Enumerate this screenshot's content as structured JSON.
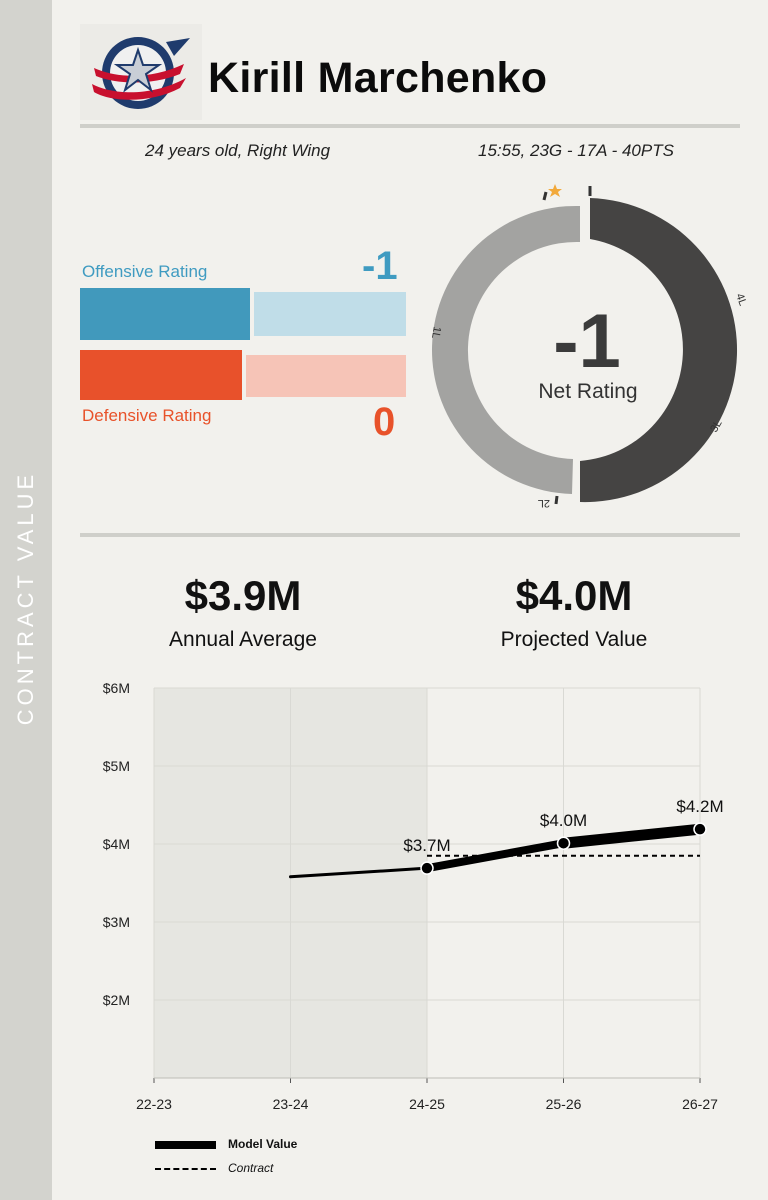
{
  "sidebar": {
    "label": "CONTRACT VALUE"
  },
  "header": {
    "player_name": "Kirill Marchenko",
    "logo_icon": "blue-jackets-logo-icon"
  },
  "info": {
    "age_position": "24 years old, Right Wing",
    "stats_line": "15:55, 23G - 17A - 40PTS"
  },
  "ratings": {
    "offensive": {
      "label": "Offensive Rating",
      "value": "-1",
      "color": "#4199bc",
      "fill": 0.53
    },
    "defensive": {
      "label": "Defensive Rating",
      "value": "0",
      "color": "#e8512b",
      "fill": 0.5
    },
    "net": {
      "label": "Net Rating",
      "value": "-1"
    },
    "donut_ticks": [
      "1L",
      "2L",
      "3L",
      "4L"
    ],
    "donut_colors": {
      "dark": "#454443",
      "light": "#a3a3a1",
      "star": "#f2a93b"
    }
  },
  "contract": {
    "annual_average": {
      "value": "$3.9M",
      "label": "Annual Average"
    },
    "projected_value": {
      "value": "$4.0M",
      "label": "Projected Value"
    }
  },
  "legend": {
    "model": "Model Value",
    "contract": "Contract"
  },
  "chart_data": {
    "type": "line",
    "categories": [
      "22-23",
      "23-24",
      "24-25",
      "25-26",
      "26-27"
    ],
    "y_ticks": [
      "$2M",
      "$3M",
      "$4M",
      "$5M",
      "$6M"
    ],
    "ylim": [
      1,
      6
    ],
    "shaded_region": [
      "23-24",
      "24-25"
    ],
    "grid": true,
    "series": [
      {
        "name": "Model Value",
        "points": [
          {
            "x": "23-24",
            "y": 3.58
          },
          {
            "x": "24-25",
            "y": 3.69,
            "label": "$3.7M"
          },
          {
            "x": "25-26",
            "y": 4.01,
            "label": "$4.0M"
          },
          {
            "x": "26-27",
            "y": 4.19,
            "label": "$4.2M"
          }
        ]
      },
      {
        "name": "Contract",
        "points": [
          {
            "x": "24-25",
            "y": 3.85
          },
          {
            "x": "26-27",
            "y": 3.85
          }
        ]
      }
    ]
  }
}
